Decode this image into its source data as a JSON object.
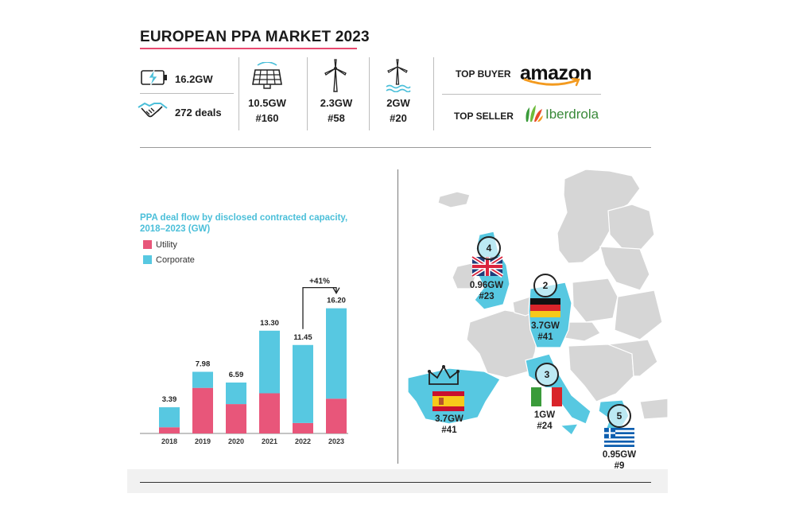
{
  "header": {
    "title": "EUROPEAN PPA MARKET 2023"
  },
  "stats": {
    "total_capacity": "16.2GW",
    "total_deals": "272 deals",
    "solar": {
      "capacity": "10.5GW",
      "deals": "#160"
    },
    "onshore_wind": {
      "capacity": "2.3GW",
      "deals": "#58"
    },
    "offshore_wind": {
      "capacity": "2GW",
      "deals": "#20"
    }
  },
  "top": {
    "buyer_label": "TOP BUYER",
    "buyer": "amazon",
    "seller_label": "TOP SELLER",
    "seller": "Iberdrola"
  },
  "icons": [
    "battery-bolt-icon",
    "handshake-icon",
    "solar-panel-icon",
    "wind-turbine-icon",
    "offshore-wind-turbine-icon",
    "amazon-logo",
    "iberdrola-leaf-logo",
    "crown-icon"
  ],
  "colors": {
    "accent": "#e8496f",
    "utility": "#e8567a",
    "corporate": "#57c8e1",
    "map_land": "#d6d6d6",
    "map_highlight": "#57c8e1"
  },
  "chart_data": {
    "type": "bar",
    "title": "PPA deal flow by disclosed contracted capacity, 2018–2023 (GW)",
    "categories": [
      "2018",
      "2019",
      "2020",
      "2021",
      "2022",
      "2023"
    ],
    "totals": [
      "3.39",
      "7.98",
      "6.59",
      "13.30",
      "11.45",
      "16.20"
    ],
    "series": [
      {
        "name": "Utility",
        "values": [
          0.8,
          5.9,
          3.8,
          5.2,
          1.35,
          4.5
        ]
      },
      {
        "name": "Corporate",
        "values": [
          2.59,
          2.08,
          2.79,
          8.1,
          10.1,
          11.7
        ]
      }
    ],
    "annotation": "+41%",
    "ylim": [
      0,
      17.5
    ]
  },
  "map": {
    "countries": [
      {
        "rank": "4",
        "capacity": "0.96GW",
        "deals": "#23"
      },
      {
        "rank": "2",
        "capacity": "3.7GW",
        "deals": "#41"
      },
      {
        "rank": "3",
        "capacity": "1GW",
        "deals": "#24"
      },
      {
        "rank": "5",
        "capacity": "0.95GW",
        "deals": "#9"
      },
      {
        "rank": "",
        "capacity": "3.7GW",
        "deals": "#41"
      }
    ]
  }
}
